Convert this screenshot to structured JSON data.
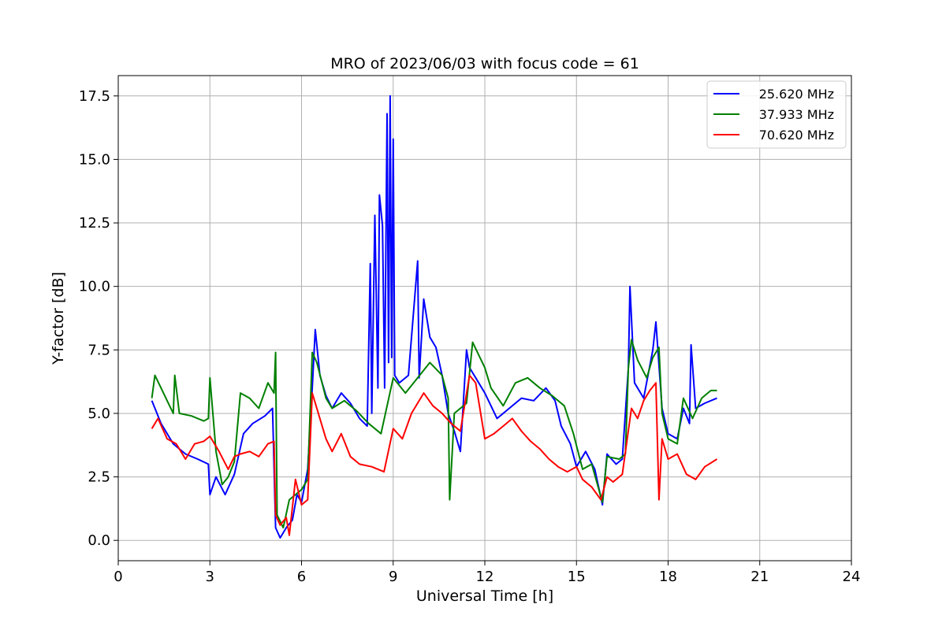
{
  "chart_data": {
    "type": "line",
    "title": "MRO of 2023/06/03 with focus code = 61",
    "xlabel": "Universal Time [h]",
    "ylabel": "Y-factor [dB]",
    "xlim": [
      0,
      24
    ],
    "ylim": [
      -0.8,
      18.3
    ],
    "xticks": [
      0,
      3,
      6,
      9,
      12,
      15,
      18,
      21,
      24
    ],
    "xtick_labels": [
      "0",
      "3",
      "6",
      "9",
      "12",
      "15",
      "18",
      "21",
      "24"
    ],
    "yticks": [
      0,
      2.5,
      5,
      7.5,
      10,
      12.5,
      15,
      17.5
    ],
    "ytick_labels": [
      "0.0",
      "2.5",
      "5.0",
      "7.5",
      "10.0",
      "12.5",
      "15.0",
      "17.5"
    ],
    "grid": true,
    "legend_position": "top-right",
    "series": [
      {
        "name": "25.620 MHz",
        "color": "#0000ff",
        "x": [
          1.1,
          1.4,
          1.8,
          2.2,
          2.6,
          2.95,
          3.0,
          3.2,
          3.5,
          3.8,
          4.1,
          4.4,
          4.8,
          5.05,
          5.15,
          5.3,
          5.5,
          5.7,
          5.85,
          6.0,
          6.2,
          6.35,
          6.45,
          6.6,
          6.8,
          7.0,
          7.3,
          7.6,
          7.9,
          8.15,
          8.25,
          8.3,
          8.4,
          8.5,
          8.55,
          8.65,
          8.72,
          8.8,
          8.85,
          8.9,
          8.95,
          9.0,
          9.05,
          9.2,
          9.5,
          9.8,
          9.85,
          10.0,
          10.2,
          10.4,
          10.6,
          10.8,
          11.0,
          11.2,
          11.4,
          11.5,
          11.8,
          12.0,
          12.4,
          12.8,
          13.2,
          13.6,
          14.0,
          14.3,
          14.5,
          14.8,
          15.0,
          15.3,
          15.6,
          15.85,
          16.0,
          16.3,
          16.5,
          16.7,
          16.75,
          16.9,
          17.2,
          17.5,
          17.6,
          17.8,
          18.0,
          18.3,
          18.5,
          18.7,
          18.75,
          18.9,
          19.2,
          19.6
        ],
        "y": [
          5.5,
          4.6,
          3.8,
          3.4,
          3.2,
          3.0,
          1.8,
          2.5,
          1.8,
          2.6,
          4.2,
          4.6,
          4.9,
          5.2,
          0.5,
          0.1,
          0.5,
          0.8,
          1.8,
          1.5,
          2.8,
          6.0,
          8.3,
          6.5,
          5.7,
          5.2,
          5.8,
          5.4,
          4.8,
          4.5,
          10.9,
          5.0,
          12.8,
          6.0,
          13.6,
          12.4,
          6.0,
          16.8,
          7.0,
          17.5,
          7.2,
          15.8,
          6.5,
          6.2,
          6.5,
          11.0,
          6.4,
          9.5,
          8.0,
          7.6,
          6.5,
          5.0,
          4.3,
          3.5,
          7.5,
          6.8,
          6.2,
          5.8,
          4.8,
          5.2,
          5.6,
          5.5,
          6.0,
          5.5,
          4.5,
          3.8,
          2.9,
          3.5,
          2.8,
          1.4,
          3.4,
          3.0,
          3.2,
          6.8,
          10.0,
          6.2,
          5.6,
          7.5,
          8.6,
          5.2,
          4.2,
          4.0,
          5.2,
          4.6,
          7.7,
          5.2,
          5.4,
          5.6
        ]
      },
      {
        "name": "37.933 MHz",
        "color": "#008000",
        "x": [
          1.1,
          1.2,
          1.4,
          1.6,
          1.8,
          1.85,
          2.0,
          2.4,
          2.8,
          2.95,
          3.0,
          3.2,
          3.4,
          3.6,
          3.8,
          4.0,
          4.3,
          4.6,
          4.9,
          5.1,
          5.15,
          5.2,
          5.4,
          5.6,
          5.8,
          6.0,
          6.2,
          6.35,
          6.5,
          6.8,
          7.0,
          7.4,
          7.8,
          8.2,
          8.6,
          9.0,
          9.4,
          9.8,
          10.2,
          10.6,
          10.8,
          10.85,
          11.0,
          11.4,
          11.6,
          12.0,
          12.2,
          12.6,
          13.0,
          13.4,
          13.8,
          14.2,
          14.6,
          14.9,
          15.2,
          15.5,
          15.85,
          16.0,
          16.4,
          16.6,
          16.7,
          16.8,
          17.0,
          17.3,
          17.5,
          17.7,
          17.8,
          18.0,
          18.3,
          18.5,
          18.8,
          19.1,
          19.4,
          19.6
        ],
        "y": [
          5.6,
          6.5,
          6.0,
          5.5,
          5.0,
          6.5,
          5.0,
          4.9,
          4.7,
          4.8,
          6.4,
          3.5,
          2.2,
          2.5,
          3.1,
          5.8,
          5.6,
          5.2,
          6.2,
          5.8,
          7.4,
          1.0,
          0.5,
          1.6,
          1.8,
          2.0,
          2.4,
          7.4,
          7.0,
          5.6,
          5.2,
          5.5,
          5.1,
          4.6,
          4.2,
          6.4,
          5.8,
          6.4,
          7.0,
          6.5,
          5.6,
          1.6,
          5.0,
          5.4,
          7.8,
          6.8,
          6.0,
          5.3,
          6.2,
          6.4,
          6.0,
          5.7,
          5.3,
          4.2,
          2.8,
          3.0,
          1.5,
          3.3,
          3.2,
          3.4,
          6.8,
          7.9,
          7.1,
          6.4,
          7.2,
          7.6,
          5.0,
          4.0,
          3.8,
          5.6,
          4.8,
          5.6,
          5.9,
          5.9
        ]
      },
      {
        "name": "70.620 MHz",
        "color": "#ff0000",
        "x": [
          1.1,
          1.3,
          1.6,
          1.9,
          2.2,
          2.5,
          2.8,
          3.0,
          3.3,
          3.6,
          3.8,
          4.0,
          4.3,
          4.6,
          4.9,
          5.1,
          5.15,
          5.3,
          5.5,
          5.6,
          5.8,
          6.0,
          6.2,
          6.35,
          6.5,
          6.8,
          7.0,
          7.3,
          7.6,
          7.9,
          8.3,
          8.7,
          9.0,
          9.3,
          9.6,
          10.0,
          10.3,
          10.6,
          10.9,
          11.2,
          11.5,
          11.7,
          12.0,
          12.3,
          12.6,
          12.9,
          13.2,
          13.5,
          13.8,
          14.1,
          14.4,
          14.7,
          15.0,
          15.2,
          15.5,
          15.8,
          16.0,
          16.2,
          16.5,
          16.8,
          17.0,
          17.2,
          17.4,
          17.6,
          17.7,
          17.8,
          18.0,
          18.3,
          18.6,
          18.9,
          19.2,
          19.6
        ],
        "y": [
          4.4,
          4.8,
          4.0,
          3.8,
          3.2,
          3.8,
          3.9,
          4.1,
          3.5,
          2.8,
          3.3,
          3.4,
          3.5,
          3.3,
          3.8,
          3.9,
          1.0,
          0.6,
          0.9,
          0.2,
          2.4,
          1.4,
          1.6,
          5.8,
          5.2,
          4.0,
          3.5,
          4.2,
          3.3,
          3.0,
          2.9,
          2.7,
          4.4,
          4.0,
          5.0,
          5.8,
          5.3,
          5.0,
          4.6,
          4.3,
          6.5,
          6.2,
          4.0,
          4.2,
          4.5,
          4.8,
          4.3,
          3.9,
          3.6,
          3.2,
          2.9,
          2.7,
          2.9,
          2.4,
          2.1,
          1.6,
          2.5,
          2.3,
          2.6,
          5.2,
          4.8,
          5.5,
          5.9,
          6.2,
          1.6,
          4.0,
          3.2,
          3.4,
          2.6,
          2.4,
          2.9,
          3.2
        ]
      }
    ]
  }
}
